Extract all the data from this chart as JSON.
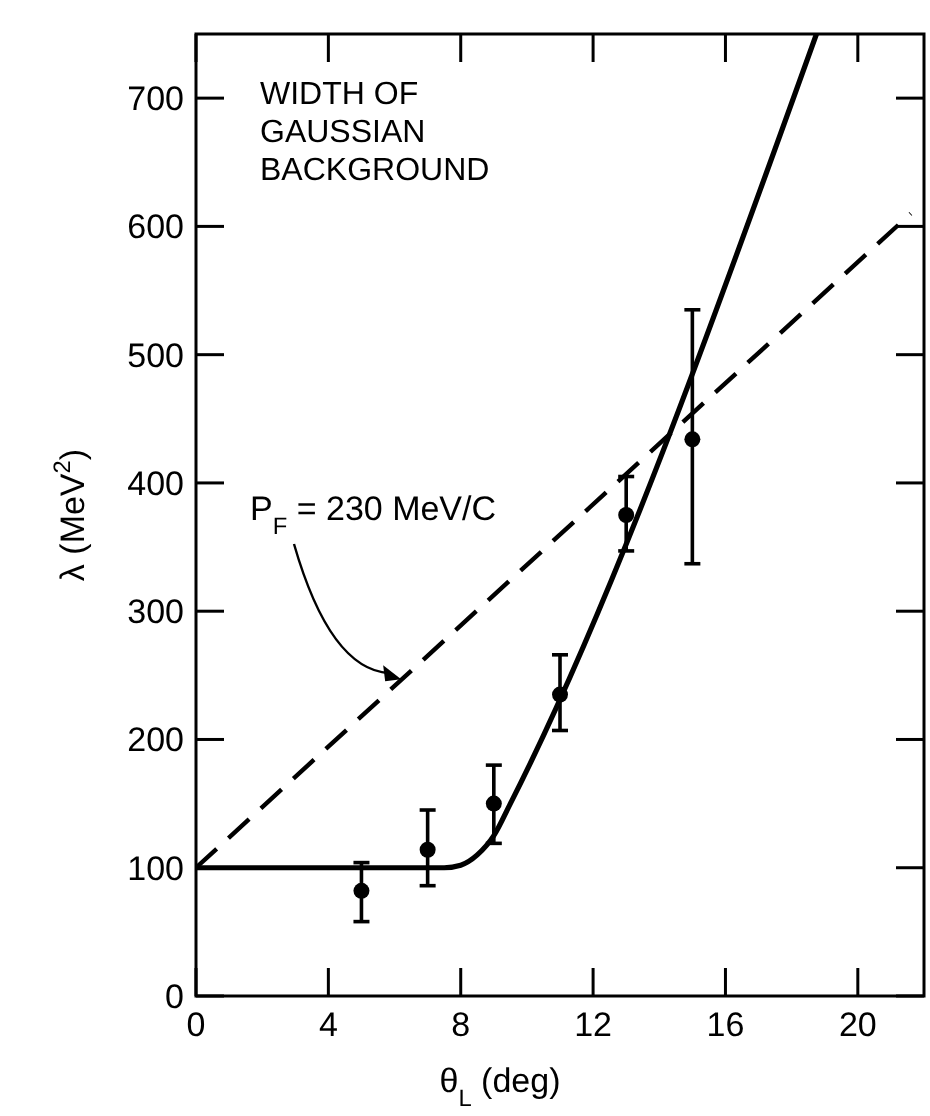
{
  "chart_data": {
    "type": "scatter",
    "xlabel": "θ$_{L}$ (deg)",
    "ylabel": "λ (MeV$^{2}$)",
    "xlim": [
      0,
      22
    ],
    "ylim": [
      0,
      750
    ],
    "xticks": [
      0,
      4,
      8,
      12,
      16,
      20
    ],
    "yticks": [
      0,
      100,
      200,
      300,
      400,
      500,
      600,
      700
    ],
    "grid": false,
    "marker": "circle",
    "series": [
      {
        "color": "#000000",
        "x": [
          5,
          7,
          9,
          11,
          13,
          15
        ],
        "values": [
          82,
          114,
          150,
          235,
          375,
          434
        ],
        "errors": [
          [
            58,
            104
          ],
          [
            86,
            145
          ],
          [
            119,
            180
          ],
          [
            207,
            266
          ],
          [
            347,
            405
          ],
          [
            337,
            535
          ]
        ]
      },
      {
        "type": "line",
        "color": "#000000",
        "line_style": "solid",
        "marker": "none",
        "x": [
          0,
          7.5,
          8,
          8.5,
          9,
          9.5,
          18.75
        ],
        "values": [
          100,
          100,
          102,
          110,
          125,
          150,
          750
        ]
      },
      {
        "type": "line",
        "color": "#000000",
        "line_style": "dashed",
        "marker": "none",
        "x": [
          0,
          21.6
        ],
        "values": [
          100,
          610
        ]
      }
    ],
    "annotations": [
      "WIDTH OF GAUSSIAN BACKGROUND",
      {
        "text": "P$_{F}$ = 230 MeV/C",
        "x": 6.2,
        "y": 247
      }
    ]
  }
}
